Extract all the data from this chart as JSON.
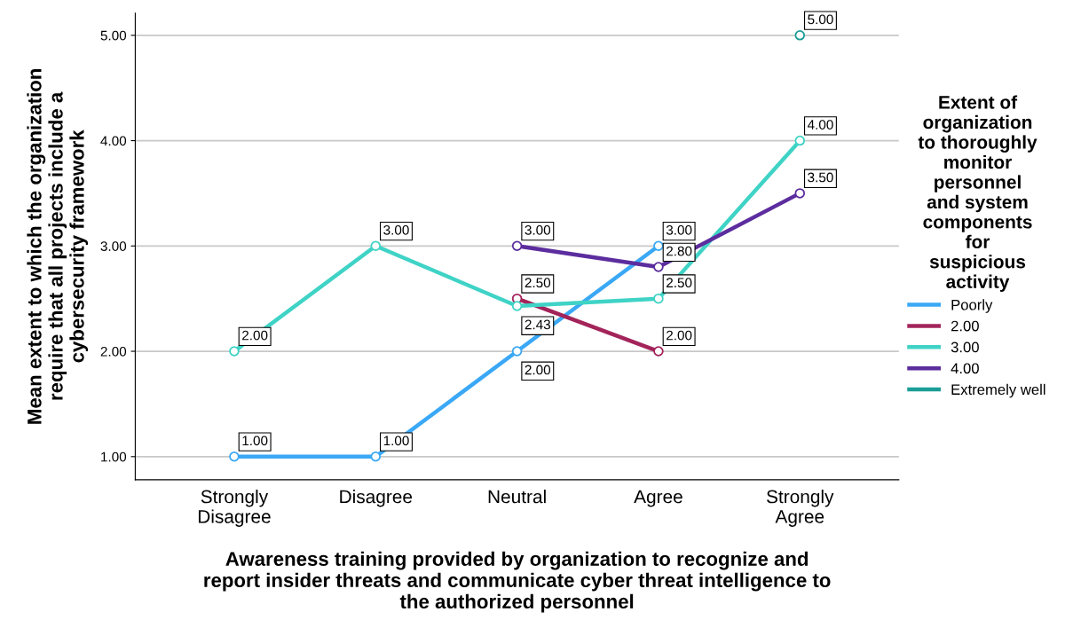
{
  "chart_data": {
    "type": "line",
    "categories": [
      "Strongly\nDisagree",
      "Disagree",
      "Neutral",
      "Agree",
      "Strongly\nAgree"
    ],
    "xlabel": "Awareness training provided by organization to recognize and\nreport insider threats and communicate cyber threat intelligence to\nthe authorized personnel",
    "ylabel": "Mean extent to which the organization\nrequire that all projects include a\ncybersecurity framework",
    "legend_title": "Extent of\norganization\nto thoroughly\nmonitor\npersonnel\nand system\ncomponents\nfor\nsuspicious\nactivity",
    "series": [
      {
        "name": "Poorly",
        "color": "#3aa8f5",
        "values": [
          1.0,
          1.0,
          2.0,
          3.0,
          null
        ],
        "value_labels": [
          "1.00",
          "1.00",
          "2.00",
          "3.00",
          null
        ]
      },
      {
        "name": "2.00",
        "color": "#a3245a",
        "values": [
          null,
          null,
          2.5,
          2.0,
          null
        ],
        "value_labels": [
          null,
          null,
          "2.50",
          "2.00",
          null
        ]
      },
      {
        "name": "3.00",
        "color": "#3fd3c6",
        "values": [
          2.0,
          3.0,
          2.43,
          2.5,
          4.0
        ],
        "value_labels": [
          "2.00",
          "3.00",
          "2.43",
          "2.50",
          "4.00"
        ]
      },
      {
        "name": "4.00",
        "color": "#5c2d9e",
        "values": [
          null,
          null,
          3.0,
          2.8,
          3.5
        ],
        "value_labels": [
          null,
          null,
          "3.00",
          "2.80",
          "3.50"
        ]
      },
      {
        "name": "Extremely well",
        "color": "#1b9e98",
        "values": [
          null,
          null,
          null,
          null,
          5.0
        ],
        "value_labels": [
          null,
          null,
          null,
          null,
          "5.00"
        ]
      }
    ],
    "ylim": [
      0.78,
      5.21
    ],
    "yticks": [
      {
        "value": 1,
        "label": "1.00"
      },
      {
        "value": 2,
        "label": "2.00"
      },
      {
        "value": 3,
        "label": "3.00"
      },
      {
        "value": 4,
        "label": "4.00"
      },
      {
        "value": 5,
        "label": "5.00"
      }
    ],
    "grid": "y",
    "legend": "right",
    "marker": "circle",
    "line_style": "solid"
  }
}
